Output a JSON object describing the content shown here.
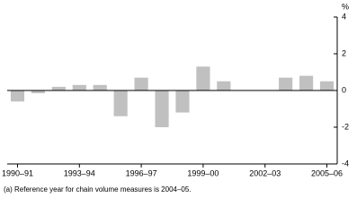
{
  "chart_data": {
    "type": "bar",
    "y_unit": "%",
    "categories": [
      "1990–91",
      null,
      null,
      "1993–94",
      null,
      null,
      "1996–97",
      null,
      null,
      "1999–00",
      null,
      null,
      "2002–03",
      null,
      null,
      "2005–06"
    ],
    "values": [
      -0.6,
      -0.15,
      0.2,
      0.3,
      0.3,
      -1.4,
      0.7,
      -2.0,
      -1.2,
      1.3,
      0.5,
      0,
      0,
      0.7,
      0.8,
      0.5
    ],
    "color": "#c0c0c0",
    "ylim": [
      -4,
      4
    ],
    "yticks": [
      -4,
      -2,
      0,
      2,
      4
    ],
    "footnote": "(a) Reference year for chain volume measures is 2004–05."
  }
}
